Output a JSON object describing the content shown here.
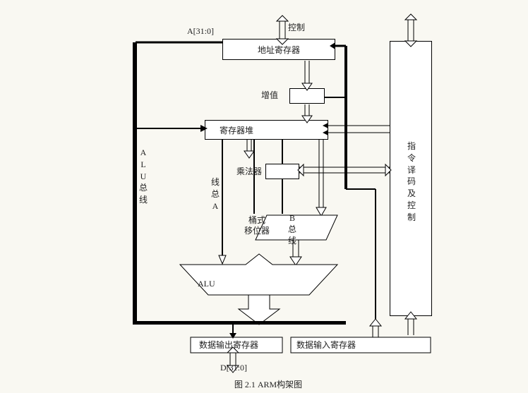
{
  "title_top": "A[31:0]",
  "control": "控制",
  "addr_reg": "地址寄存器",
  "incrementer": "增值",
  "reg_bank": "寄存器堆",
  "alu_bus": "ALU总线",
  "bus_a": "线总A",
  "multiplier": "乘法器",
  "barrel_shifter_l1": "桶式",
  "barrel_shifter_l2": "移位器",
  "bus_b_l1": "B",
  "bus_b_l2": "总",
  "bus_b_l3": "线",
  "alu": "ALU",
  "decode": "指令译码及控制",
  "data_out": "数据输出寄存器",
  "data_in": "数据输入寄存器",
  "d_bus": "D[31:0]",
  "caption": "图 2.1 ARM构架图",
  "stroke": "#000000",
  "fill": "#ffffff"
}
